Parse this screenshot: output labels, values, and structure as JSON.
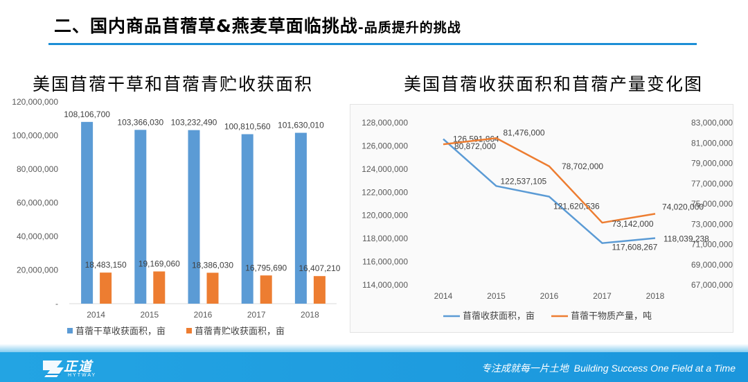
{
  "header": {
    "title": "二、国内商品苜蓿草&燕麦草面临挑战",
    "subtitle": "-品质提升的挑战"
  },
  "chart_data": [
    {
      "type": "bar",
      "title": "美国苜蓿干草和苜蓿青贮收获面积",
      "categories": [
        "2014",
        "2015",
        "2016",
        "2017",
        "2018"
      ],
      "series": [
        {
          "name": "苜蓿干草收获面积，亩",
          "color": "#5b9bd5",
          "values": [
            108106700,
            103366030,
            103232490,
            100810560,
            101630010
          ],
          "labels": [
            "108,106,700",
            "103,366,030",
            "103,232,490",
            "100,810,560",
            "101,630,010"
          ]
        },
        {
          "name": "苜蓿青贮收获面积，亩",
          "color": "#ed7d31",
          "values": [
            18483150,
            19169060,
            18386030,
            16795690,
            16407210
          ],
          "labels": [
            "18,483,150",
            "19,169,060",
            "18,386,030",
            "16,795,690",
            "16,407,210"
          ]
        }
      ],
      "ylim": [
        0,
        120000000
      ],
      "y_ticks": [
        "-",
        "20,000,000",
        "40,000,000",
        "60,000,000",
        "80,000,000",
        "100,000,000",
        "120,000,000"
      ],
      "legend": "bottom",
      "grid": false
    },
    {
      "type": "line",
      "title": "美国苜蓿收获面积和苜蓿产量变化图",
      "categories": [
        "2014",
        "2015",
        "2016",
        "2017",
        "2018"
      ],
      "series": [
        {
          "name": "苜蓿收获面积，亩",
          "color": "#5b9bd5",
          "axis": "left",
          "values": [
            126591864,
            122537105,
            121620536,
            117608267,
            118039238
          ],
          "labels": [
            "126,591,864",
            "122,537,105",
            "121,620,536",
            "117,608,267",
            "118,039,238"
          ]
        },
        {
          "name": "苜蓿干物质产量，吨",
          "color": "#ed7d31",
          "axis": "right",
          "values": [
            80872000,
            81476000,
            78702000,
            73142000,
            74020000
          ],
          "labels": [
            "80,872,000",
            "81,476,000",
            "78,702,000",
            "73,142,000",
            "74,020,000"
          ]
        }
      ],
      "ylim_left": [
        114000000,
        128000000
      ],
      "y_ticks_left": [
        "114,000,000",
        "116,000,000",
        "118,000,000",
        "120,000,000",
        "122,000,000",
        "124,000,000",
        "126,000,000",
        "128,000,000"
      ],
      "ylim_right": [
        67000000,
        83000000
      ],
      "y_ticks_right": [
        "67,000,000",
        "69,000,000",
        "71,000,000",
        "73,000,000",
        "75,000,000",
        "77,000,000",
        "79,000,000",
        "81,000,000",
        "83,000,000"
      ],
      "legend": "bottom",
      "grid": false
    }
  ],
  "footer": {
    "logo_text": "正道",
    "logo_sub": "HYTWAY",
    "slogan_cn": "专注成就每一片土地",
    "slogan_en": "Building Success One Field at a Time"
  }
}
